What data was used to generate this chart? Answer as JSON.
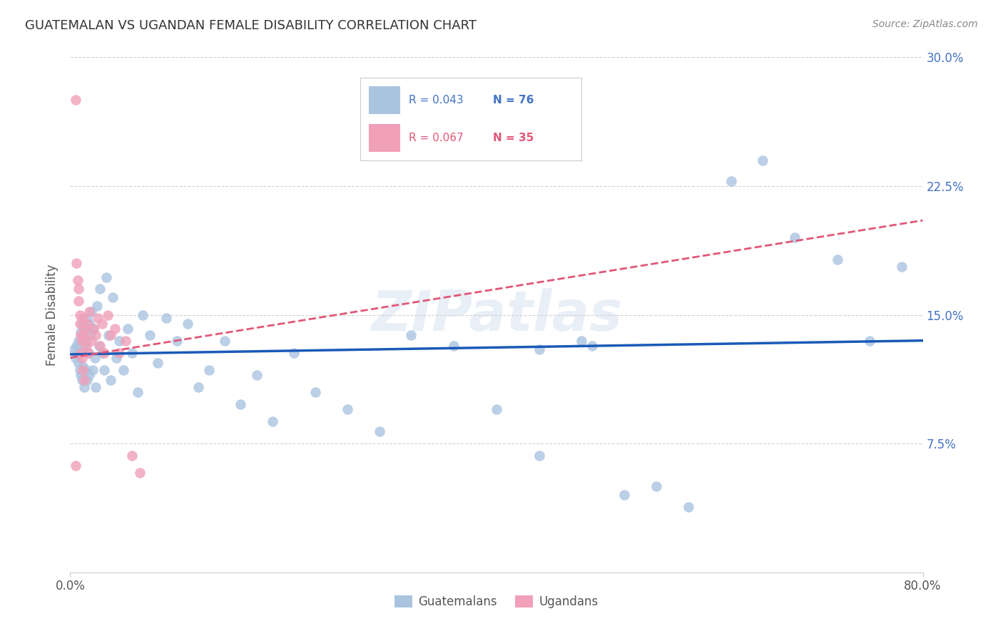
{
  "title": "GUATEMALAN VS UGANDAN FEMALE DISABILITY CORRELATION CHART",
  "source": "Source: ZipAtlas.com",
  "ylabel": "Female Disability",
  "xlim": [
    0.0,
    0.8
  ],
  "ylim": [
    0.0,
    0.3
  ],
  "y_ticks": [
    0.075,
    0.15,
    0.225,
    0.3
  ],
  "y_tick_labels": [
    "7.5%",
    "15.0%",
    "22.5%",
    "30.0%"
  ],
  "guatemalan_R": 0.043,
  "guatemalan_N": 76,
  "ugandan_R": 0.067,
  "ugandan_N": 35,
  "guatemalan_color": "#aac4e0",
  "ugandan_color": "#f0a0b8",
  "guatemalan_line_color": "#1a5ab8",
  "ugandan_line_color": "#e05878",
  "background_color": "#ffffff",
  "watermark": "ZIPatlas",
  "guat_trend_x": [
    0.0,
    0.8
  ],
  "guat_trend_y": [
    0.127,
    0.135
  ],
  "ugand_trend_x": [
    0.0,
    0.8
  ],
  "ugand_trend_y": [
    0.125,
    0.205
  ],
  "legend_R1": "R = 0.043",
  "legend_N1": "N = 76",
  "legend_R2": "R = 0.067",
  "legend_N2": "N = 35",
  "legend_label1": "Guatemalans",
  "legend_label2": "Ugandans",
  "guat_x": [
    0.004,
    0.005,
    0.006,
    0.007,
    0.008,
    0.008,
    0.009,
    0.01,
    0.01,
    0.011,
    0.011,
    0.012,
    0.012,
    0.013,
    0.013,
    0.014,
    0.015,
    0.015,
    0.016,
    0.016,
    0.017,
    0.018,
    0.018,
    0.019,
    0.02,
    0.021,
    0.022,
    0.023,
    0.024,
    0.025,
    0.027,
    0.028,
    0.03,
    0.032,
    0.034,
    0.036,
    0.038,
    0.04,
    0.043,
    0.046,
    0.05,
    0.054,
    0.058,
    0.063,
    0.068,
    0.075,
    0.082,
    0.09,
    0.1,
    0.11,
    0.12,
    0.13,
    0.145,
    0.16,
    0.175,
    0.19,
    0.21,
    0.23,
    0.26,
    0.29,
    0.32,
    0.36,
    0.4,
    0.44,
    0.49,
    0.52,
    0.55,
    0.58,
    0.62,
    0.65,
    0.68,
    0.72,
    0.75,
    0.78,
    0.44,
    0.48
  ],
  "guat_y": [
    0.13,
    0.125,
    0.132,
    0.128,
    0.135,
    0.122,
    0.118,
    0.14,
    0.115,
    0.145,
    0.112,
    0.138,
    0.12,
    0.132,
    0.108,
    0.142,
    0.135,
    0.118,
    0.148,
    0.112,
    0.128,
    0.145,
    0.115,
    0.138,
    0.152,
    0.118,
    0.142,
    0.125,
    0.108,
    0.155,
    0.132,
    0.165,
    0.128,
    0.118,
    0.172,
    0.138,
    0.112,
    0.16,
    0.125,
    0.135,
    0.118,
    0.142,
    0.128,
    0.105,
    0.15,
    0.138,
    0.122,
    0.148,
    0.135,
    0.145,
    0.108,
    0.118,
    0.135,
    0.098,
    0.115,
    0.088,
    0.128,
    0.105,
    0.095,
    0.082,
    0.138,
    0.132,
    0.095,
    0.068,
    0.132,
    0.045,
    0.05,
    0.038,
    0.228,
    0.24,
    0.195,
    0.182,
    0.135,
    0.178,
    0.13,
    0.135
  ],
  "ugand_x": [
    0.005,
    0.006,
    0.007,
    0.008,
    0.008,
    0.009,
    0.009,
    0.01,
    0.01,
    0.011,
    0.011,
    0.012,
    0.012,
    0.013,
    0.013,
    0.014,
    0.015,
    0.016,
    0.017,
    0.018,
    0.02,
    0.022,
    0.024,
    0.026,
    0.028,
    0.03,
    0.032,
    0.035,
    0.038,
    0.042,
    0.046,
    0.052,
    0.058,
    0.065,
    0.005
  ],
  "ugand_y": [
    0.275,
    0.18,
    0.17,
    0.165,
    0.158,
    0.15,
    0.145,
    0.138,
    0.128,
    0.135,
    0.125,
    0.148,
    0.118,
    0.142,
    0.112,
    0.138,
    0.132,
    0.145,
    0.128,
    0.152,
    0.135,
    0.142,
    0.138,
    0.148,
    0.132,
    0.145,
    0.128,
    0.15,
    0.138,
    0.142,
    0.128,
    0.135,
    0.068,
    0.058,
    0.062
  ]
}
